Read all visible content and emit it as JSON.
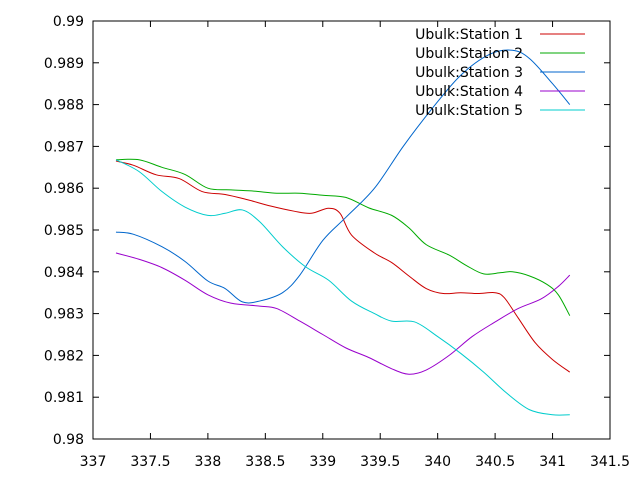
{
  "chart_data": {
    "type": "line",
    "title": "",
    "xlabel": "",
    "ylabel": "",
    "xlim": [
      337,
      341.5
    ],
    "ylim": [
      0.98,
      0.99
    ],
    "xticks": [
      "337",
      "337.5",
      "338",
      "338.5",
      "339",
      "339.5",
      "340",
      "340.5",
      "341",
      "341.5"
    ],
    "yticks": [
      "0.98",
      "0.981",
      "0.982",
      "0.983",
      "0.984",
      "0.985",
      "0.986",
      "0.987",
      "0.988",
      "0.989",
      "0.99"
    ],
    "grid": false,
    "legend_position": "top-right",
    "series": [
      {
        "name": "Ubulk:Station 1",
        "color": "#cc0000",
        "points": [
          [
            337.2,
            0.98665
          ],
          [
            337.35,
            0.98655
          ],
          [
            337.55,
            0.98632
          ],
          [
            337.75,
            0.98623
          ],
          [
            337.95,
            0.98592
          ],
          [
            338.15,
            0.98585
          ],
          [
            338.35,
            0.98572
          ],
          [
            338.55,
            0.98557
          ],
          [
            338.75,
            0.98545
          ],
          [
            338.9,
            0.9854
          ],
          [
            339.05,
            0.98552
          ],
          [
            339.15,
            0.9854
          ],
          [
            339.25,
            0.98488
          ],
          [
            339.45,
            0.98445
          ],
          [
            339.6,
            0.98422
          ],
          [
            339.75,
            0.9839
          ],
          [
            339.9,
            0.9836
          ],
          [
            340.05,
            0.98348
          ],
          [
            340.2,
            0.9835
          ],
          [
            340.35,
            0.98348
          ],
          [
            340.5,
            0.9835
          ],
          [
            340.58,
            0.98338
          ],
          [
            340.7,
            0.9829
          ],
          [
            340.85,
            0.9823
          ],
          [
            341.0,
            0.9819
          ],
          [
            341.15,
            0.9816
          ]
        ]
      },
      {
        "name": "Ubulk:Station 2",
        "color": "#00aa00",
        "points": [
          [
            337.2,
            0.98668
          ],
          [
            337.4,
            0.98668
          ],
          [
            337.6,
            0.9865
          ],
          [
            337.8,
            0.98633
          ],
          [
            338.0,
            0.986
          ],
          [
            338.2,
            0.98596
          ],
          [
            338.4,
            0.98593
          ],
          [
            338.6,
            0.98588
          ],
          [
            338.8,
            0.98588
          ],
          [
            339.0,
            0.98583
          ],
          [
            339.2,
            0.98578
          ],
          [
            339.4,
            0.98553
          ],
          [
            339.6,
            0.98535
          ],
          [
            339.75,
            0.98505
          ],
          [
            339.9,
            0.98465
          ],
          [
            340.1,
            0.9844
          ],
          [
            340.25,
            0.98415
          ],
          [
            340.4,
            0.98395
          ],
          [
            340.55,
            0.98398
          ],
          [
            340.65,
            0.984
          ],
          [
            340.8,
            0.9839
          ],
          [
            340.95,
            0.9837
          ],
          [
            341.05,
            0.98345
          ],
          [
            341.15,
            0.98295
          ]
        ]
      },
      {
        "name": "Ubulk:Station 3",
        "color": "#0066cc",
        "points": [
          [
            337.2,
            0.98495
          ],
          [
            337.35,
            0.9849
          ],
          [
            337.6,
            0.9846
          ],
          [
            337.8,
            0.98425
          ],
          [
            338.0,
            0.98378
          ],
          [
            338.15,
            0.9836
          ],
          [
            338.3,
            0.98328
          ],
          [
            338.45,
            0.9833
          ],
          [
            338.65,
            0.9835
          ],
          [
            338.8,
            0.98392
          ],
          [
            339.0,
            0.98475
          ],
          [
            339.2,
            0.9853
          ],
          [
            339.45,
            0.986
          ],
          [
            339.7,
            0.987
          ],
          [
            339.95,
            0.9879
          ],
          [
            340.2,
            0.9887
          ],
          [
            340.45,
            0.9892
          ],
          [
            340.65,
            0.9893
          ],
          [
            340.8,
            0.9891
          ],
          [
            341.0,
            0.9885
          ],
          [
            341.15,
            0.988
          ]
        ]
      },
      {
        "name": "Ubulk:Station 4",
        "color": "#9900cc",
        "points": [
          [
            337.2,
            0.98445
          ],
          [
            337.4,
            0.9843
          ],
          [
            337.6,
            0.9841
          ],
          [
            337.8,
            0.9838
          ],
          [
            338.0,
            0.98345
          ],
          [
            338.2,
            0.98325
          ],
          [
            338.45,
            0.98318
          ],
          [
            338.6,
            0.98312
          ],
          [
            338.8,
            0.98282
          ],
          [
            339.0,
            0.9825
          ],
          [
            339.2,
            0.98218
          ],
          [
            339.4,
            0.98195
          ],
          [
            339.6,
            0.98168
          ],
          [
            339.75,
            0.98155
          ],
          [
            339.9,
            0.98165
          ],
          [
            340.1,
            0.982
          ],
          [
            340.3,
            0.98245
          ],
          [
            340.5,
            0.9828
          ],
          [
            340.7,
            0.98312
          ],
          [
            340.9,
            0.98335
          ],
          [
            341.05,
            0.98365
          ],
          [
            341.15,
            0.98392
          ]
        ]
      },
      {
        "name": "Ubulk:Station 5",
        "color": "#00cccc",
        "points": [
          [
            337.2,
            0.98668
          ],
          [
            337.4,
            0.9864
          ],
          [
            337.6,
            0.98592
          ],
          [
            337.8,
            0.98555
          ],
          [
            338.0,
            0.98535
          ],
          [
            338.15,
            0.9854
          ],
          [
            338.3,
            0.98548
          ],
          [
            338.45,
            0.9852
          ],
          [
            338.65,
            0.9846
          ],
          [
            338.85,
            0.98412
          ],
          [
            339.05,
            0.9838
          ],
          [
            339.25,
            0.9833
          ],
          [
            339.45,
            0.983
          ],
          [
            339.6,
            0.98282
          ],
          [
            339.8,
            0.9828
          ],
          [
            340.0,
            0.98245
          ],
          [
            340.2,
            0.98205
          ],
          [
            340.4,
            0.9816
          ],
          [
            340.6,
            0.9811
          ],
          [
            340.8,
            0.9807
          ],
          [
            341.0,
            0.98058
          ],
          [
            341.15,
            0.98058
          ]
        ]
      }
    ]
  }
}
